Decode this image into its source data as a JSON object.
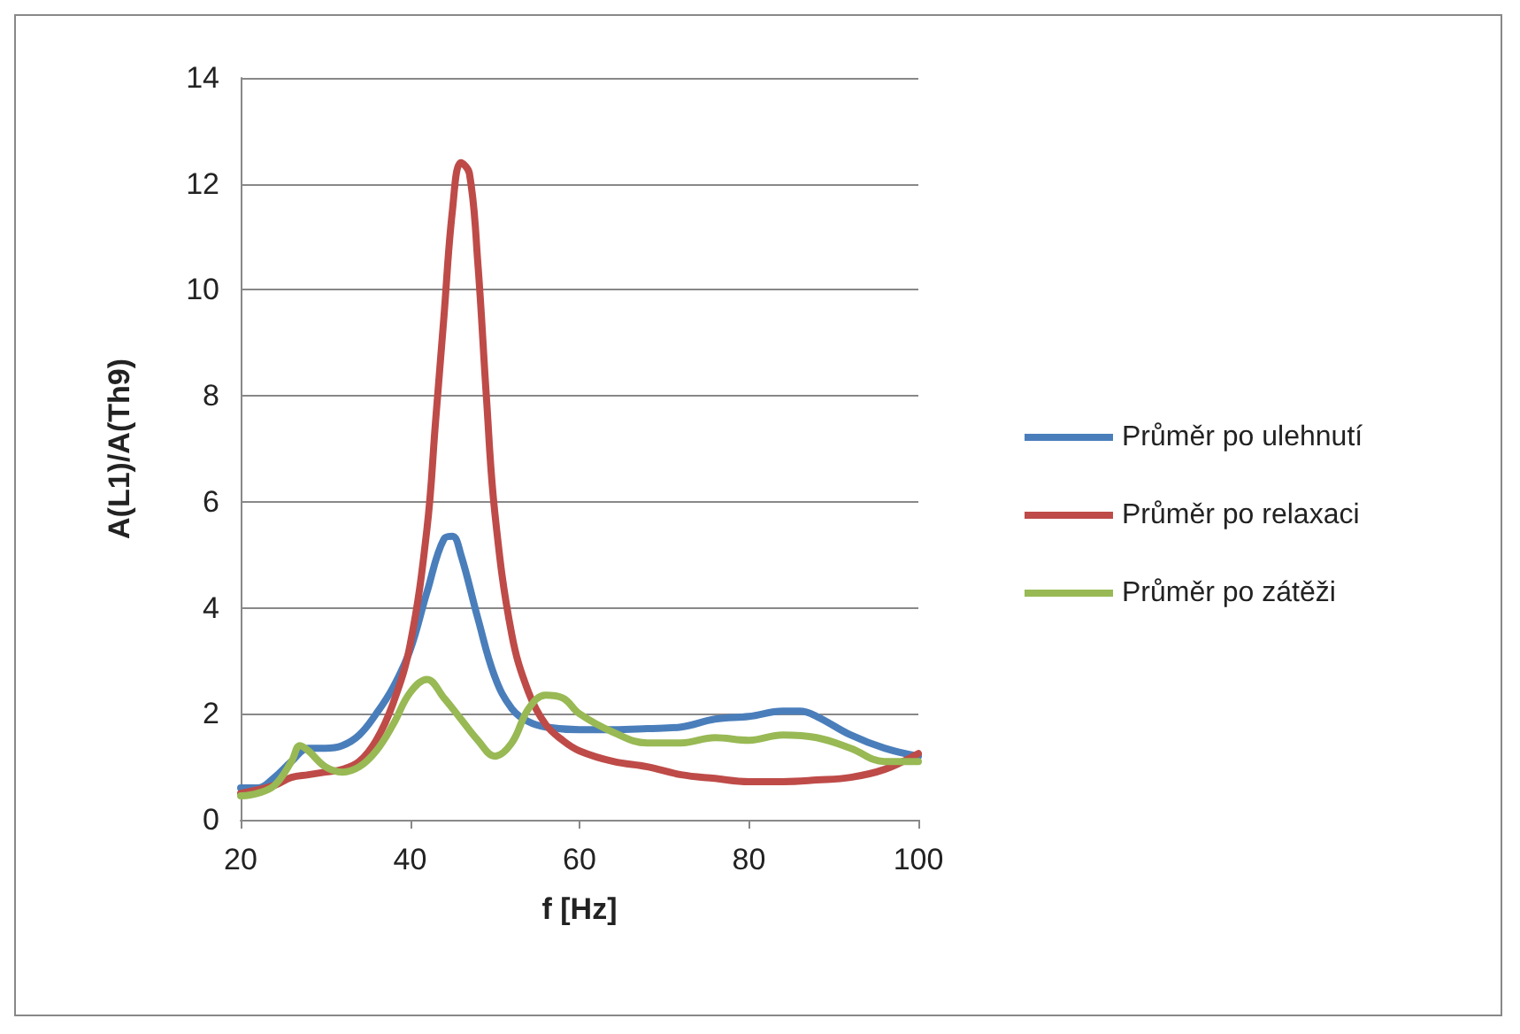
{
  "chart_data": {
    "type": "line",
    "xlabel": "f [Hz]",
    "ylabel": "A(L1)/A(Th9)",
    "xlim": [
      20,
      100
    ],
    "xticks": [
      20,
      40,
      60,
      80,
      100
    ],
    "ylim": [
      0,
      14
    ],
    "yticks": [
      0,
      2,
      4,
      6,
      8,
      10,
      12,
      14
    ],
    "grid": "y",
    "legend": "right",
    "marker": "none",
    "line_style": "solid",
    "series": [
      {
        "name": "Průměr po ulehnutí",
        "color": "#4a7ebb",
        "x": [
          20,
          22,
          24,
          26,
          28,
          30,
          32,
          34,
          36,
          38,
          40,
          42,
          44,
          45,
          46,
          48,
          50,
          52,
          54,
          56,
          60,
          64,
          68,
          72,
          76,
          80,
          84,
          86,
          88,
          92,
          96,
          100
        ],
        "values": [
          0.6,
          0.6,
          0.8,
          1.1,
          1.35,
          1.35,
          1.4,
          1.6,
          2.0,
          2.5,
          3.2,
          4.3,
          5.3,
          5.35,
          5.0,
          3.8,
          2.7,
          2.1,
          1.85,
          1.75,
          1.7,
          1.7,
          1.72,
          1.75,
          1.9,
          1.95,
          2.05,
          2.05,
          1.95,
          1.6,
          1.35,
          1.2
        ]
      },
      {
        "name": "Průměr po relaxaci",
        "color": "#be4b48",
        "x": [
          20,
          24,
          26,
          28,
          30,
          32,
          34,
          36,
          38,
          40,
          42,
          43,
          44,
          45,
          46,
          47,
          48,
          49,
          50,
          52,
          54,
          56,
          58,
          60,
          64,
          68,
          72,
          76,
          80,
          84,
          88,
          92,
          96,
          100
        ],
        "values": [
          0.5,
          0.65,
          0.8,
          0.85,
          0.9,
          0.95,
          1.1,
          1.5,
          2.2,
          3.3,
          5.5,
          7.5,
          9.5,
          11.5,
          12.4,
          12.2,
          10.5,
          8,
          5.8,
          3.5,
          2.4,
          1.8,
          1.5,
          1.3,
          1.1,
          1.0,
          0.85,
          0.78,
          0.72,
          0.72,
          0.75,
          0.8,
          0.95,
          1.25
        ]
      },
      {
        "name": "Průměr po zátěži",
        "color": "#98b954",
        "x": [
          20,
          22,
          24,
          26,
          27,
          28,
          30,
          32,
          34,
          36,
          38,
          40,
          42,
          44,
          46,
          48,
          50,
          52,
          54,
          56,
          58,
          60,
          64,
          68,
          72,
          76,
          80,
          84,
          88,
          92,
          96,
          100
        ],
        "values": [
          0.45,
          0.5,
          0.65,
          1.1,
          1.4,
          1.3,
          1.0,
          0.9,
          1.0,
          1.3,
          1.8,
          2.4,
          2.65,
          2.3,
          1.9,
          1.5,
          1.2,
          1.45,
          2.1,
          2.35,
          2.3,
          2.0,
          1.65,
          1.45,
          1.45,
          1.55,
          1.5,
          1.6,
          1.55,
          1.35,
          1.1,
          1.1
        ]
      }
    ]
  }
}
